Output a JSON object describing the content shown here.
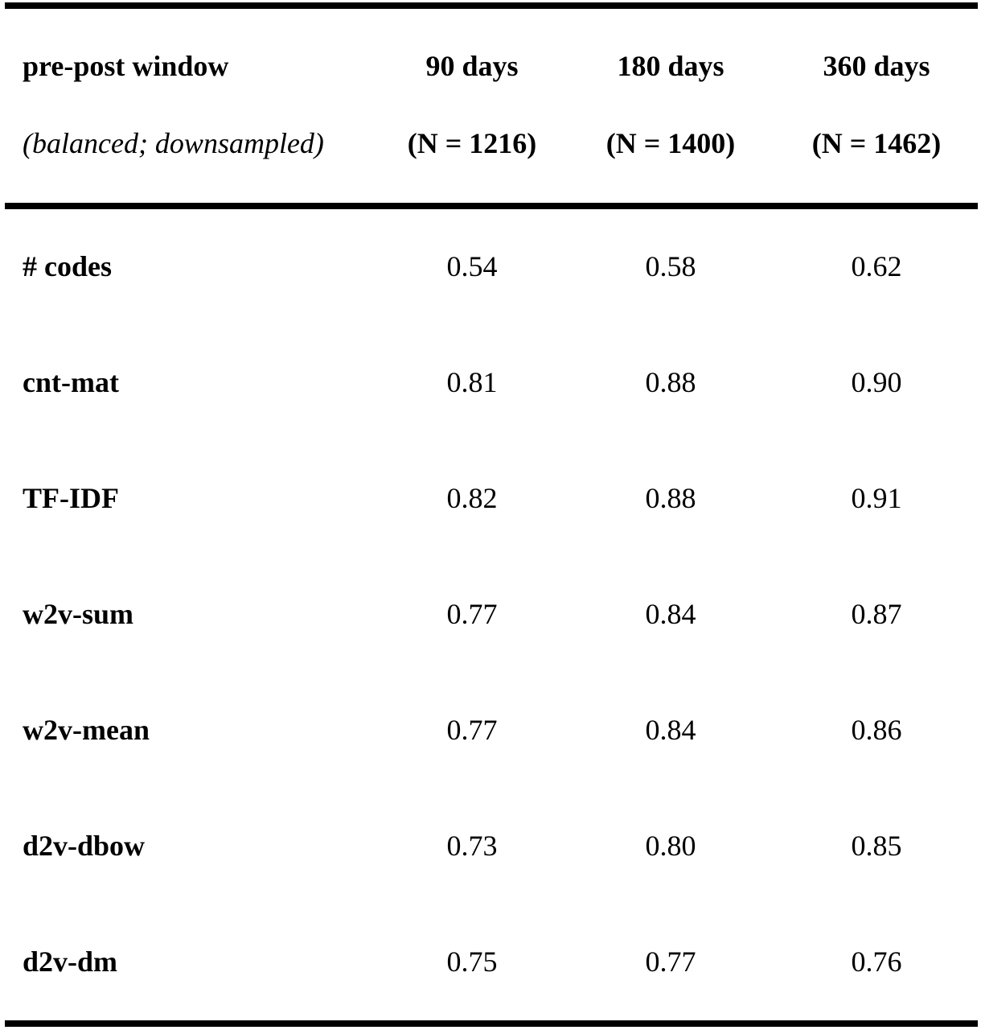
{
  "table": {
    "header": {
      "row_label": "pre-post window",
      "row_sublabel": "(balanced; downsampled)",
      "columns": [
        {
          "label": "90 days",
          "n": "(N = 1216)"
        },
        {
          "label": "180 days",
          "n": "(N = 1400)"
        },
        {
          "label": "360 days",
          "n": "(N = 1462)"
        }
      ]
    },
    "rows": [
      {
        "label": "# codes",
        "values": [
          "0.54",
          "0.58",
          "0.62"
        ]
      },
      {
        "label": "cnt-mat",
        "values": [
          "0.81",
          "0.88",
          "0.90"
        ]
      },
      {
        "label": "TF-IDF",
        "values": [
          "0.82",
          "0.88",
          "0.91"
        ]
      },
      {
        "label": "w2v-sum",
        "values": [
          "0.77",
          "0.84",
          "0.87"
        ]
      },
      {
        "label": "w2v-mean",
        "values": [
          "0.77",
          "0.84",
          "0.86"
        ]
      },
      {
        "label": "d2v-dbow",
        "values": [
          "0.73",
          "0.80",
          "0.85"
        ]
      },
      {
        "label": "d2v-dm",
        "values": [
          "0.75",
          "0.77",
          "0.76"
        ]
      }
    ]
  }
}
